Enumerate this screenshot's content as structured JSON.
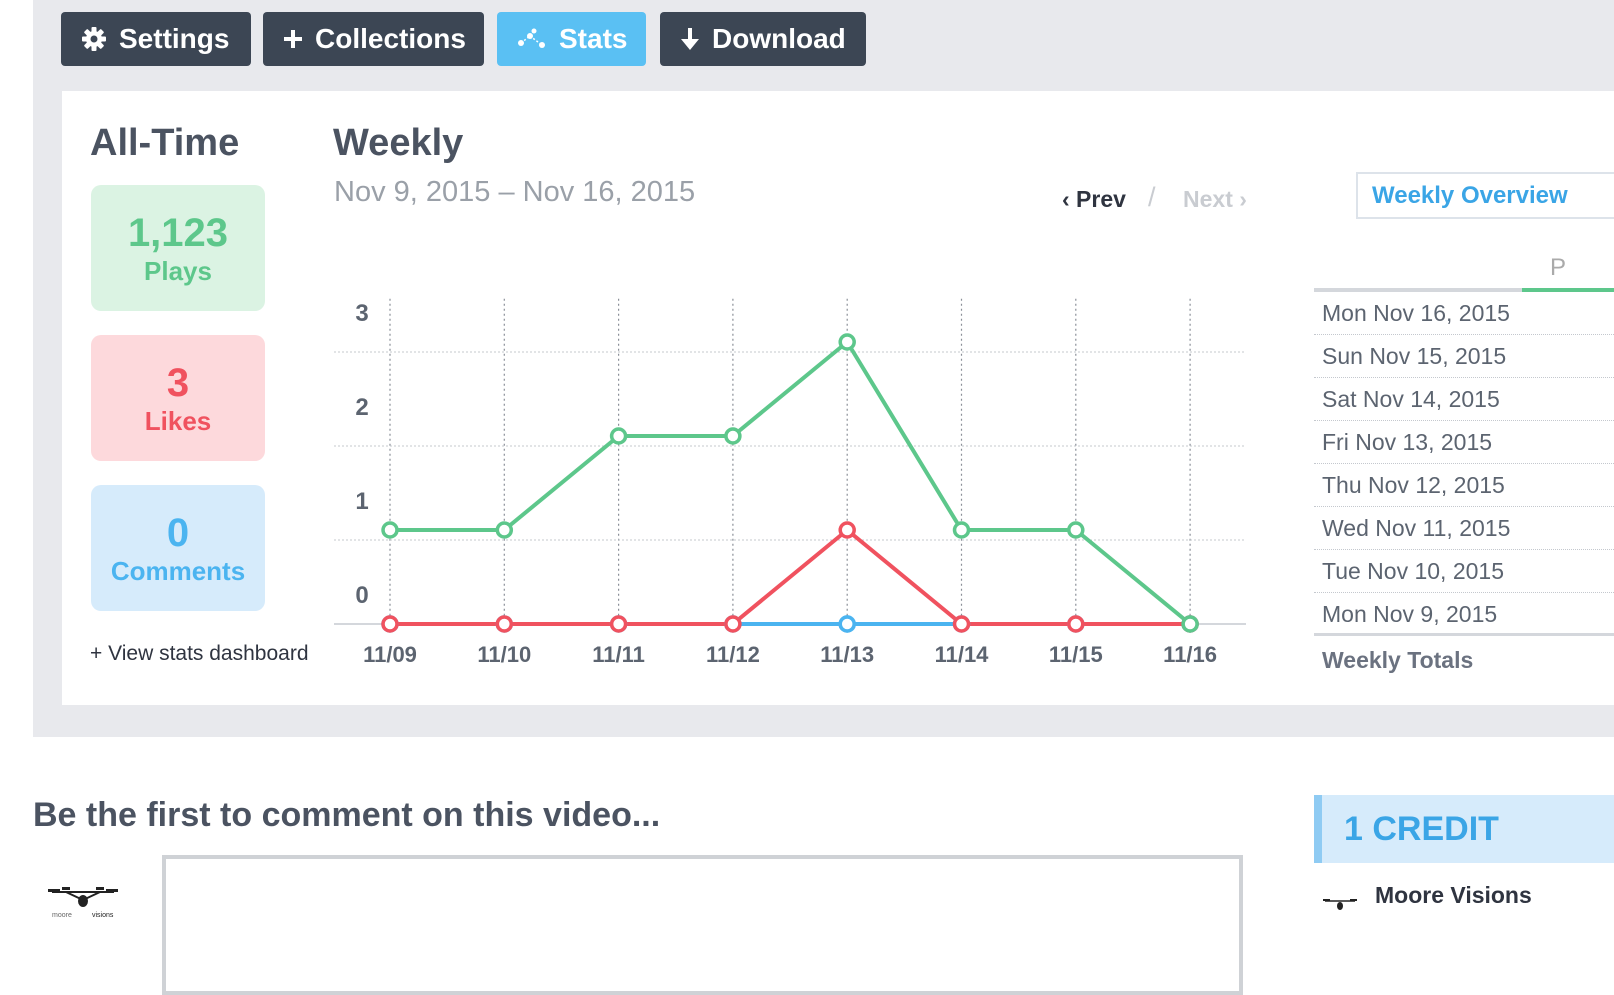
{
  "toolbar": {
    "settings_label": "Settings",
    "collections_label": "Collections",
    "stats_label": "Stats",
    "download_label": "Download"
  },
  "all_time": {
    "heading": "All-Time",
    "plays_value": "1,123",
    "plays_label": "Plays",
    "likes_value": "3",
    "likes_label": "Likes",
    "comments_value": "0",
    "comments_label": "Comments",
    "view_dashboard": "+ View stats dashboard"
  },
  "weekly": {
    "heading": "Weekly",
    "date_range": "Nov 9, 2015 – Nov 16, 2015",
    "prev_label": "‹ Prev",
    "separator": "/",
    "next_label": "Next ›",
    "overview_button": "Weekly Overview",
    "column_letter": "P",
    "days": [
      "Mon Nov 16, 2015",
      "Sun Nov 15, 2015",
      "Sat Nov 14, 2015",
      "Fri Nov 13, 2015",
      "Thu Nov 12, 2015",
      "Wed Nov 11, 2015",
      "Tue Nov 10, 2015",
      "Mon Nov 9, 2015"
    ],
    "totals_label": "Weekly Totals"
  },
  "chart_data": {
    "type": "line",
    "x": [
      "11/09",
      "11/10",
      "11/11",
      "11/12",
      "11/13",
      "11/14",
      "11/15",
      "11/16"
    ],
    "yticks": [
      0,
      1,
      2,
      3
    ],
    "ylim": [
      0,
      3.3
    ],
    "grid": true,
    "series": [
      {
        "key": "plays",
        "color": "#5dc78b",
        "values": [
          1,
          1,
          2,
          2,
          3,
          1,
          1,
          0
        ]
      },
      {
        "key": "likes",
        "color": "#f0525f",
        "values": [
          0,
          0,
          0,
          0,
          1,
          0,
          0,
          0
        ]
      },
      {
        "key": "comments",
        "color": "#4bb4f0",
        "values": [
          0,
          0,
          0,
          0,
          0,
          0,
          0,
          0
        ]
      }
    ]
  },
  "comments_section": {
    "heading": "Be the first to comment on this video..."
  },
  "credits": {
    "header": "1 CREDIT",
    "name": "Moore Visions"
  },
  "colors": {
    "button_dark": "#3c4654",
    "button_active": "#5ac0f3",
    "plays": "#5dc78b",
    "likes": "#f0525f",
    "comments": "#4bb4f0"
  }
}
